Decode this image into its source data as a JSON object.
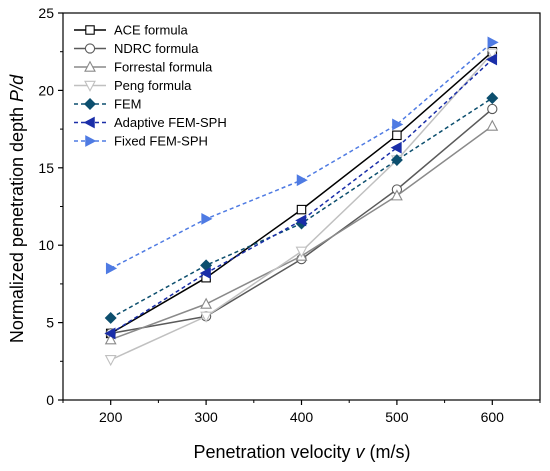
{
  "chart_data": {
    "type": "line",
    "title": "",
    "xlabel": {
      "main": "Penetration velocity ",
      "var": "v",
      "unit": " (m/s)"
    },
    "ylabel": {
      "main": "Normalized penetration depth ",
      "var": "P/d"
    },
    "x": [
      200,
      300,
      400,
      500,
      600
    ],
    "xlim": [
      150,
      650
    ],
    "ylim": [
      0,
      25
    ],
    "xticks": [
      200,
      300,
      400,
      500,
      600
    ],
    "yticks": [
      0,
      5,
      10,
      15,
      20,
      25
    ],
    "grid": false,
    "legend_position": "top-left",
    "series": [
      {
        "name": "ACE formula",
        "values": [
          4.3,
          7.9,
          12.3,
          17.1,
          22.5
        ],
        "color": "#000000",
        "dash": "solid",
        "marker": "square-open"
      },
      {
        "name": "NDRC formula",
        "values": [
          4.3,
          5.4,
          9.1,
          13.6,
          18.8
        ],
        "color": "#5a5a5a",
        "dash": "solid",
        "marker": "circle-open"
      },
      {
        "name": "Forrestal formula",
        "values": [
          3.9,
          6.2,
          9.3,
          13.2,
          17.7
        ],
        "color": "#8a8a8a",
        "dash": "solid",
        "marker": "triangle-up-open"
      },
      {
        "name": "Peng formula",
        "values": [
          2.6,
          5.4,
          9.6,
          15.5,
          22.4
        ],
        "color": "#c0c0c0",
        "dash": "solid",
        "marker": "triangle-down-open"
      },
      {
        "name": "FEM",
        "values": [
          5.3,
          8.7,
          11.4,
          15.5,
          19.5
        ],
        "color": "#0d4f6e",
        "dash": "dashed",
        "marker": "diamond"
      },
      {
        "name": "Adaptive FEM-SPH",
        "values": [
          4.3,
          8.2,
          11.6,
          16.3,
          22.0
        ],
        "color": "#1a2ea8",
        "dash": "dashed",
        "marker": "triangle-left"
      },
      {
        "name": "Fixed FEM-SPH",
        "values": [
          8.5,
          11.7,
          14.2,
          17.8,
          23.1
        ],
        "color": "#4f7be3",
        "dash": "dashed",
        "marker": "triangle-right"
      }
    ]
  }
}
